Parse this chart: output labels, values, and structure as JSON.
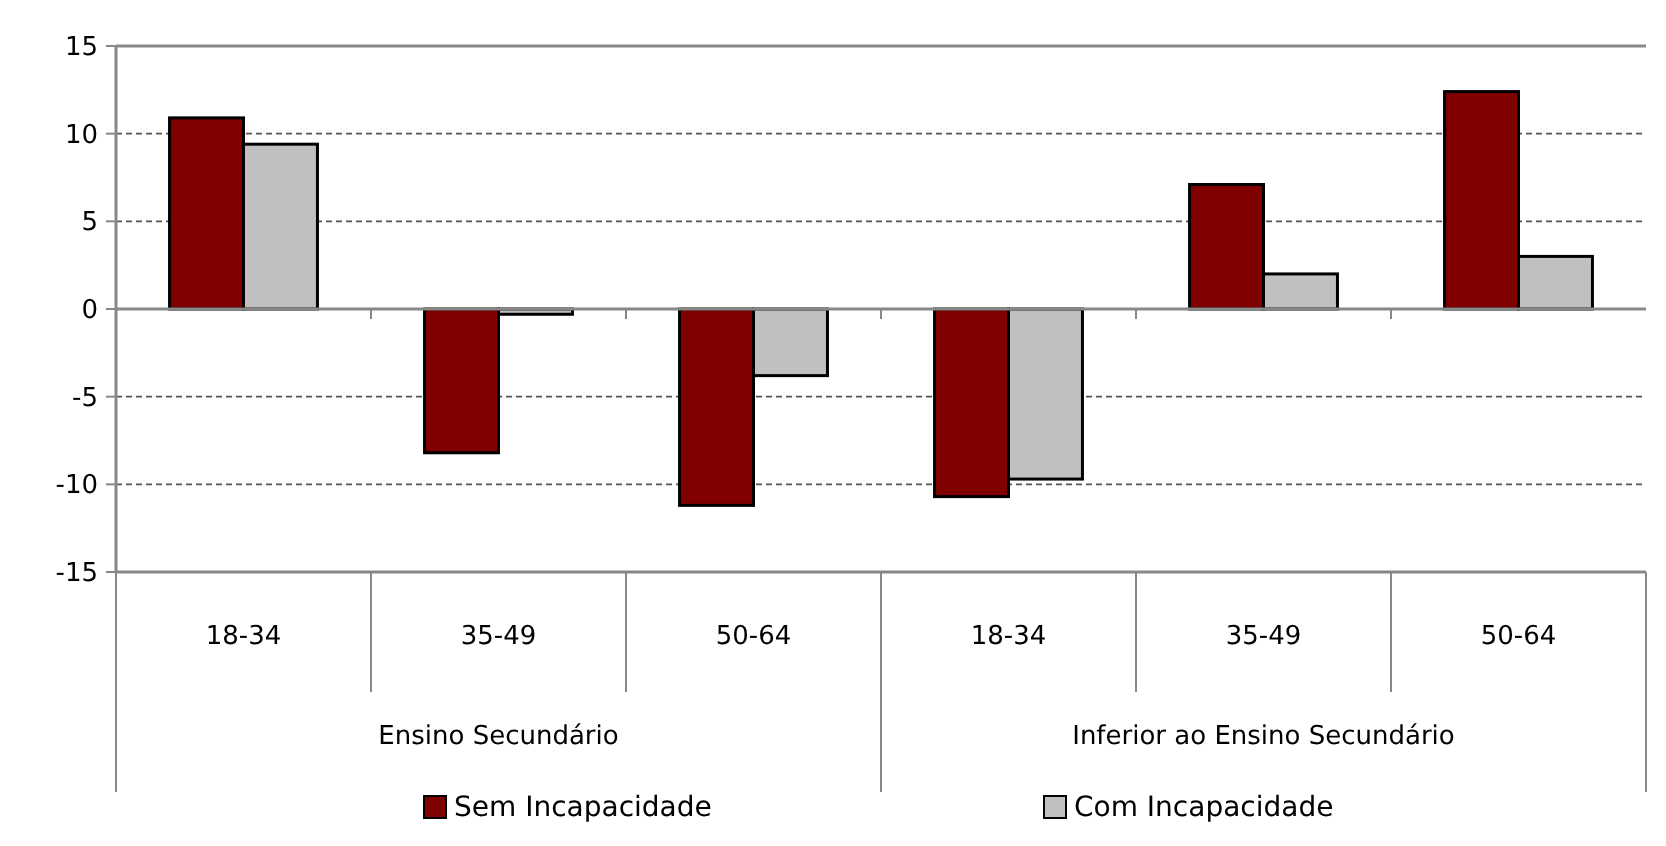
{
  "chart_data": {
    "type": "bar",
    "categories": [
      "18-34",
      "35-49",
      "50-64",
      "18-34",
      "35-49",
      "50-64"
    ],
    "annotations": [
      "Ensino Secundário",
      "Inferior ao Ensino Secundário"
    ],
    "series": [
      {
        "name": "Sem Incapacidade",
        "color": "#800000",
        "values": [
          10.9,
          -8.2,
          -11.2,
          -10.7,
          7.1,
          12.4
        ]
      },
      {
        "name": "Com Incapacidade",
        "color": "#c0c0c0",
        "values": [
          9.4,
          -0.3,
          -3.8,
          -9.7,
          2.0,
          3.0
        ]
      }
    ],
    "ylim": [
      -15,
      15
    ],
    "yticks": [
      -15,
      -10,
      -5,
      0,
      5,
      10,
      15
    ],
    "grid": "y",
    "legend": "bottom"
  }
}
